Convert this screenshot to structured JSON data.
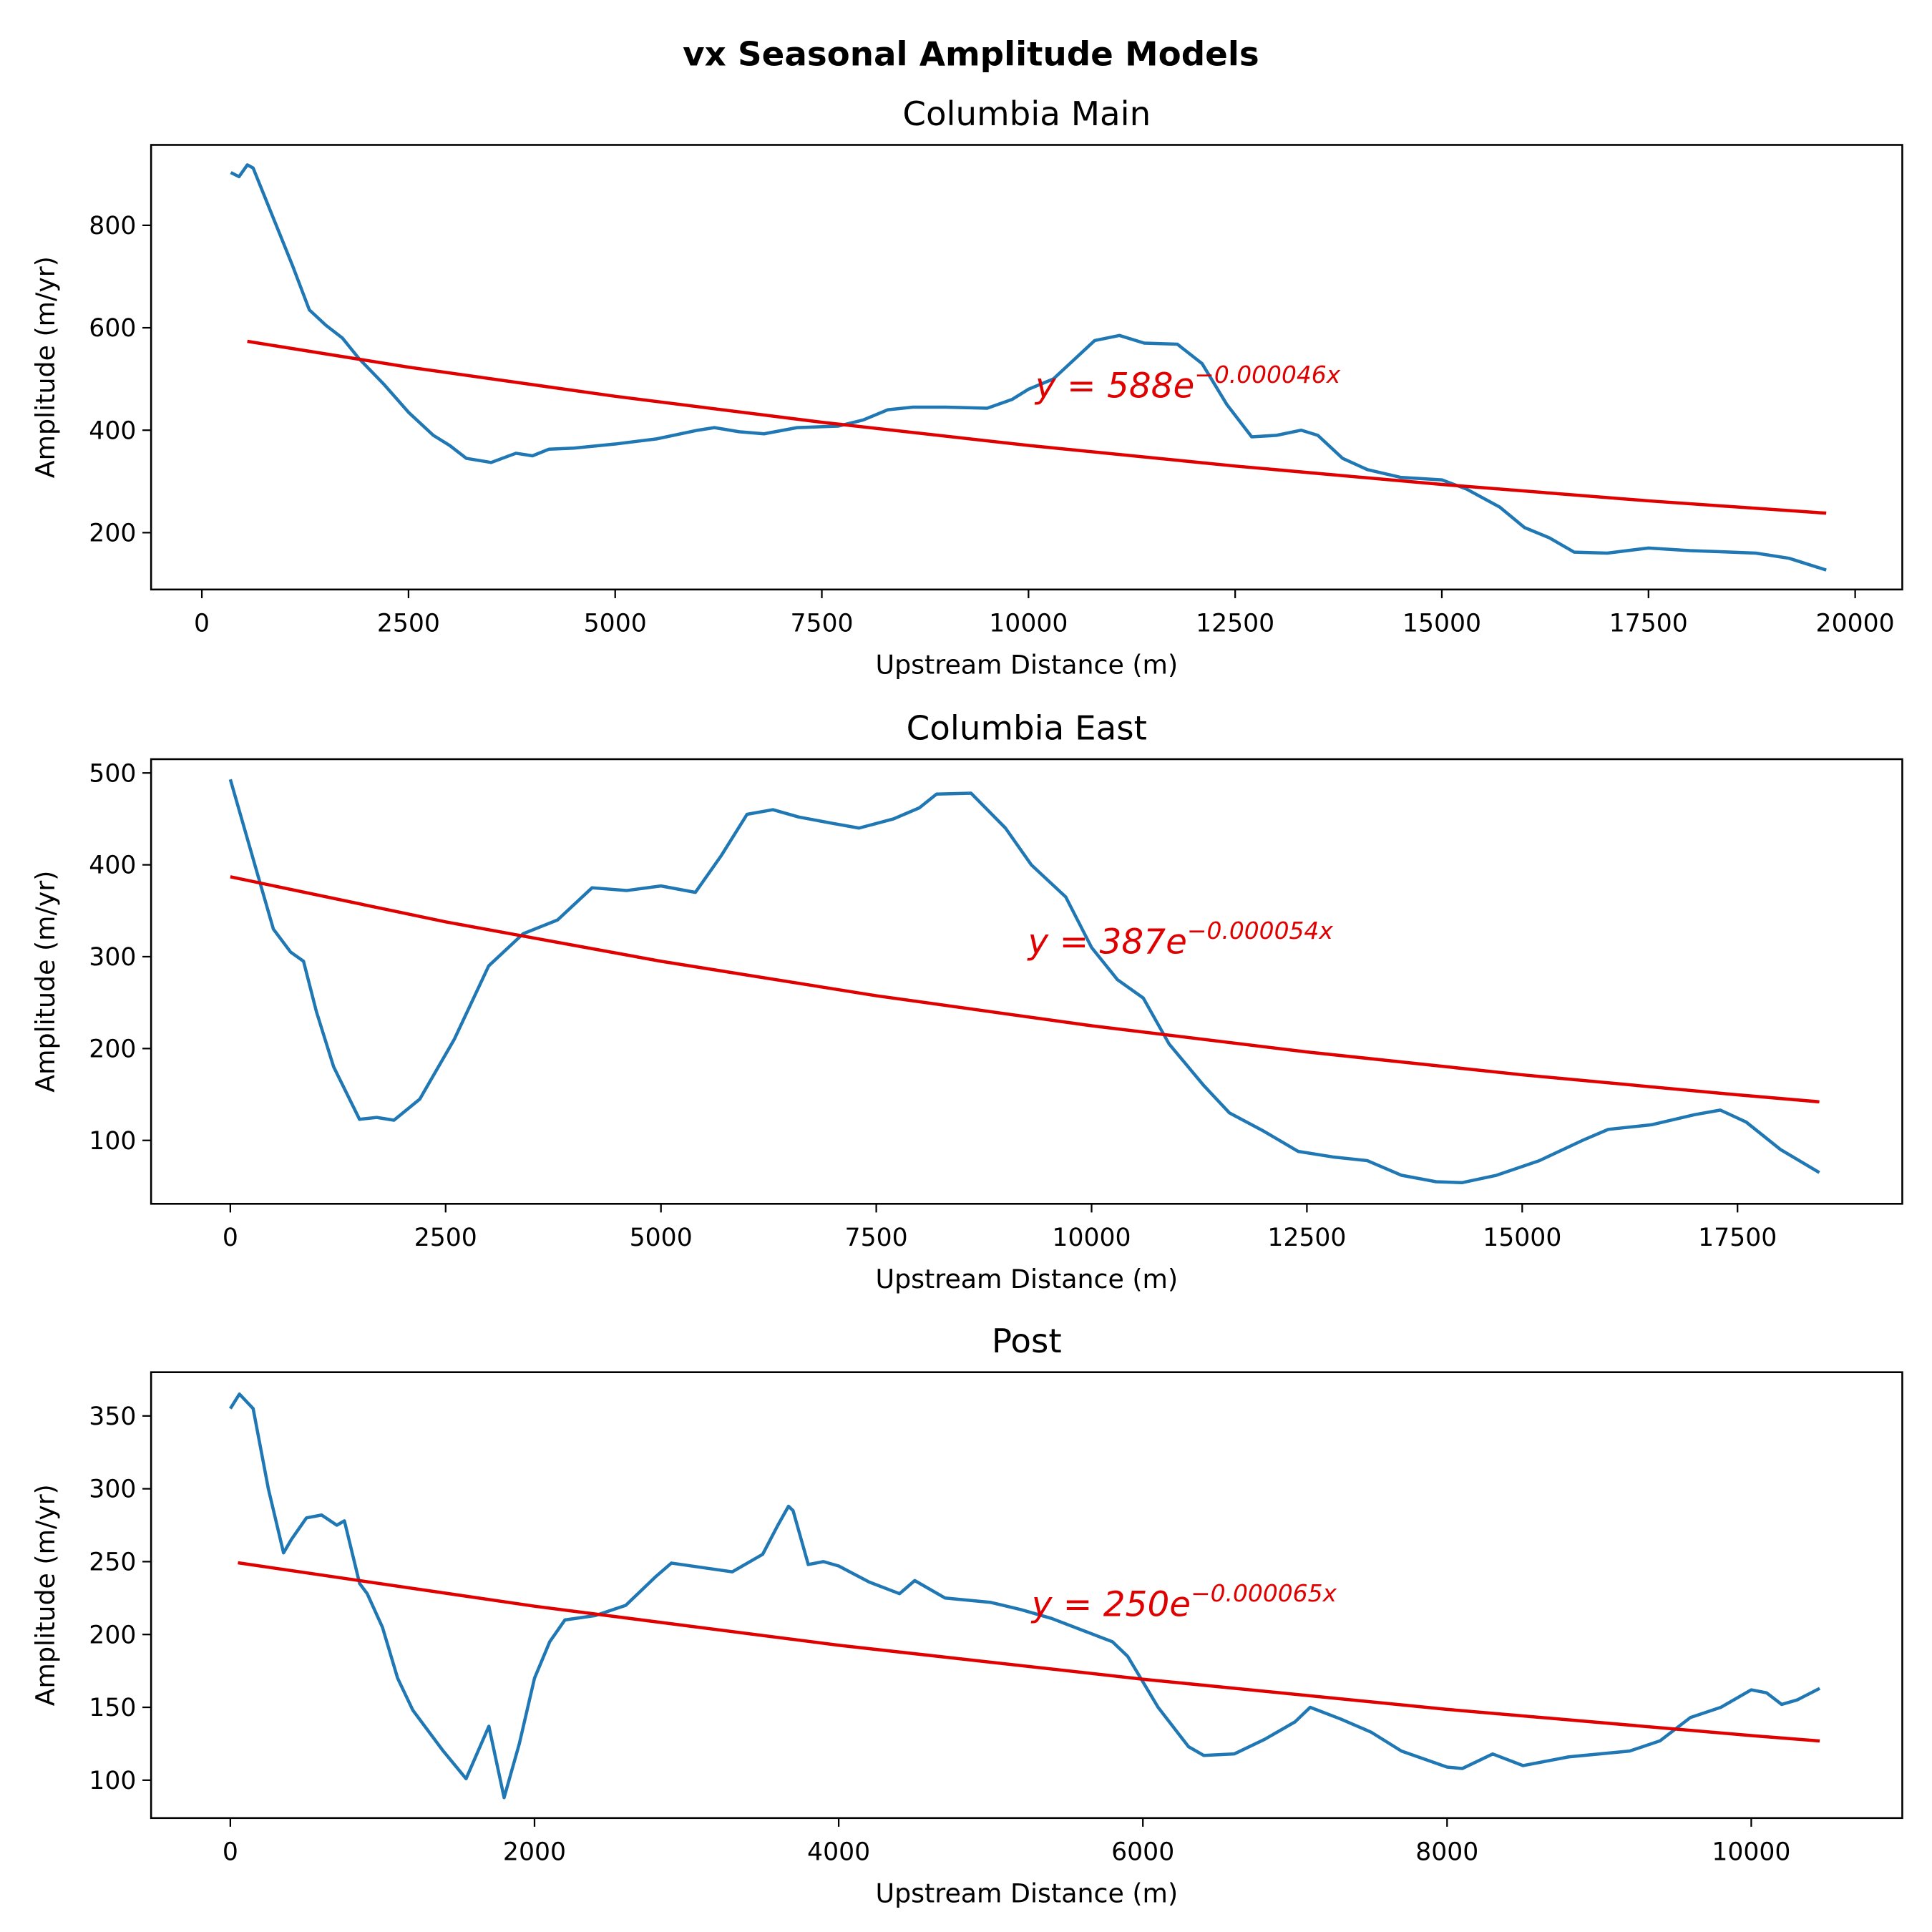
{
  "title": "vx Seasonal Amplitude Models",
  "chart_data": [
    {
      "type": "line",
      "title": "Columbia Main",
      "xlabel": "Upstream Distance (m)",
      "ylabel": "Amplitude (m/yr)",
      "xlim": [
        -614,
        20570
      ],
      "ylim": [
        89,
        957
      ],
      "xticks": [
        0,
        2500,
        5000,
        7500,
        10000,
        12500,
        15000,
        17500,
        20000
      ],
      "yticks": [
        200,
        400,
        600,
        800
      ],
      "annotation": {
        "text": "y = 588e",
        "exponent": "−0.000046x"
      },
      "series": [
        {
          "color": "#1f77b4",
          "x": [
            350,
            450,
            550,
            620,
            700,
            900,
            1100,
            1300,
            1500,
            1700,
            1900,
            2200,
            2500,
            2800,
            3000,
            3200,
            3500,
            3800,
            4000,
            4200,
            4500,
            5000,
            5500,
            6000,
            6200,
            6500,
            6800,
            7200,
            7700,
            8000,
            8300,
            8600,
            9000,
            9500,
            9800,
            10000,
            10300,
            10500,
            10800,
            11100,
            11400,
            11800,
            12100,
            12400,
            12700,
            13000,
            13300,
            13500,
            13800,
            14100,
            14500,
            15000,
            15300,
            15700,
            16000,
            16300,
            16600,
            17000,
            17500,
            18000,
            18500,
            18800,
            19200,
            19650
          ],
          "values": [
            903,
            895,
            918,
            912,
            880,
            800,
            720,
            635,
            605,
            580,
            540,
            490,
            435,
            390,
            370,
            345,
            337,
            355,
            350,
            363,
            365,
            373,
            383,
            400,
            405,
            397,
            393,
            405,
            408,
            420,
            440,
            445,
            445,
            443,
            460,
            480,
            500,
            530,
            575,
            585,
            570,
            568,
            530,
            450,
            387,
            390,
            400,
            390,
            345,
            323,
            308,
            303,
            285,
            250,
            210,
            190,
            162,
            160,
            170,
            165,
            162,
            160,
            150,
            127
          ]
        },
        {
          "color": "#e00000",
          "x": [
            550,
            2500,
            5000,
            7500,
            10000,
            12500,
            15000,
            17500,
            19650
          ],
          "values": [
            573.5,
            523.1,
            466.2,
            415.5,
            370.3,
            330.0,
            294.1,
            262.1,
            238.0
          ]
        }
      ]
    },
    {
      "type": "line",
      "title": "Columbia East",
      "xlabel": "Upstream Distance (m)",
      "ylabel": "Amplitude (m/yr)",
      "xlim": [
        -920,
        19413
      ],
      "ylim": [
        31,
        515
      ],
      "xticks": [
        0,
        2500,
        5000,
        7500,
        10000,
        12500,
        15000,
        17500
      ],
      "yticks": [
        100,
        200,
        300,
        400,
        500
      ],
      "annotation": {
        "text": "y = 387e",
        "exponent": "−0.000054x"
      },
      "series": [
        {
          "color": "#1f77b4",
          "x": [
            0,
            300,
            500,
            700,
            850,
            1000,
            1200,
            1500,
            1700,
            1900,
            2200,
            2600,
            3000,
            3400,
            3800,
            4200,
            4600,
            5000,
            5400,
            5700,
            6000,
            6300,
            6600,
            7000,
            7300,
            7700,
            8000,
            8200,
            8600,
            9000,
            9300,
            9700,
            10000,
            10300,
            10600,
            10900,
            11300,
            11600,
            12000,
            12400,
            12800,
            13200,
            13600,
            14000,
            14300,
            14700,
            15200,
            15700,
            16000,
            16500,
            17000,
            17300,
            17600,
            18000,
            18450
          ],
          "values": [
            493,
            395,
            330,
            305,
            295,
            240,
            180,
            123,
            125,
            122,
            145,
            210,
            290,
            325,
            340,
            375,
            372,
            377,
            370,
            410,
            455,
            460,
            452,
            445,
            440,
            450,
            462,
            477,
            478,
            440,
            400,
            365,
            310,
            275,
            255,
            205,
            160,
            130,
            110,
            88,
            82,
            78,
            62,
            55,
            54,
            62,
            78,
            100,
            112,
            117,
            128,
            133,
            120,
            90,
            65
          ]
        },
        {
          "color": "#e00000",
          "x": [
            0,
            2500,
            5000,
            7500,
            10000,
            12500,
            15000,
            17500,
            18450
          ],
          "values": [
            387,
            337.9,
            295.0,
            257.5,
            224.8,
            196.3,
            171.4,
            149.6,
            142.0
          ]
        }
      ]
    },
    {
      "type": "line",
      "title": "Post",
      "xlabel": "Upstream Distance (m)",
      "ylabel": "Amplitude (m/yr)",
      "xlim": [
        -521,
        10993
      ],
      "ylim": [
        74,
        380
      ],
      "xticks": [
        0,
        2000,
        4000,
        6000,
        8000,
        10000
      ],
      "yticks": [
        100,
        150,
        200,
        250,
        300,
        350
      ],
      "annotation": {
        "text": "y = 250e",
        "exponent": "−0.000065x"
      },
      "series": [
        {
          "color": "#1f77b4",
          "x": [
            0,
            60,
            150,
            250,
            350,
            400,
            500,
            600,
            700,
            750,
            850,
            900,
            1000,
            1100,
            1200,
            1400,
            1550,
            1700,
            1800,
            1900,
            2000,
            2100,
            2200,
            2400,
            2600,
            2800,
            2900,
            3100,
            3300,
            3500,
            3600,
            3670,
            3700,
            3800,
            3900,
            4000,
            4200,
            4400,
            4500,
            4700,
            5000,
            5200,
            5400,
            5600,
            5800,
            5900,
            6100,
            6300,
            6400,
            6600,
            6800,
            7000,
            7100,
            7300,
            7500,
            7700,
            8000,
            8100,
            8300,
            8500,
            8800,
            9200,
            9400,
            9600,
            9800,
            10000,
            10100,
            10200,
            10300,
            10450
          ],
          "values": [
            355,
            365,
            355,
            300,
            256,
            265,
            280,
            282,
            275,
            278,
            235,
            228,
            205,
            170,
            148,
            120,
            101,
            137,
            88,
            125,
            170,
            195,
            210,
            213,
            220,
            240,
            249,
            246,
            243,
            255,
            275,
            288,
            285,
            248,
            250,
            247,
            236,
            228,
            237,
            225,
            222,
            217,
            211,
            203,
            195,
            185,
            150,
            123,
            117,
            118,
            128,
            140,
            150,
            142,
            133,
            120,
            109,
            108,
            118,
            110,
            116,
            120,
            127,
            143,
            150,
            162,
            160,
            152,
            155,
            163
          ]
        },
        {
          "color": "#e00000",
          "x": [
            50,
            2000,
            4000,
            6000,
            8000,
            10000,
            10450
          ],
          "values": [
            249.2,
            219.4,
            192.6,
            169.3,
            148.6,
            130.6,
            126.9
          ]
        }
      ]
    }
  ]
}
